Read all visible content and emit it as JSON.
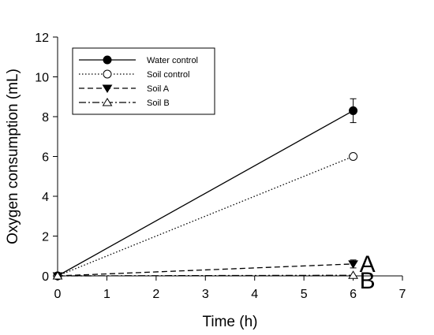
{
  "chart_data": {
    "type": "line",
    "title": "",
    "xlabel": "Time (h)",
    "ylabel": "Oxygen consumption (mL)",
    "xlim": [
      0,
      7
    ],
    "ylim": [
      0,
      12
    ],
    "xticks": [
      0,
      1,
      2,
      3,
      4,
      5,
      6,
      7
    ],
    "yticks": [
      0,
      2,
      4,
      6,
      8,
      10,
      12
    ],
    "grid": false,
    "legend_position": "top-left",
    "series": [
      {
        "name": "Water control",
        "x": [
          0,
          6
        ],
        "y": [
          0,
          8.3
        ],
        "yerr": [
          0,
          0.6
        ],
        "marker": "filled-circle",
        "line_style": "solid"
      },
      {
        "name": "Soil control",
        "x": [
          0,
          6
        ],
        "y": [
          0,
          6.0
        ],
        "marker": "open-circle",
        "line_style": "dotted"
      },
      {
        "name": "Soil A",
        "x": [
          0,
          6
        ],
        "y": [
          0,
          0.6
        ],
        "yerr": [
          0,
          0.2
        ],
        "marker": "filled-triangle-down",
        "line_style": "dashed"
      },
      {
        "name": "Soil B",
        "x": [
          0,
          6
        ],
        "y": [
          0,
          0.03
        ],
        "marker": "open-triangle-up",
        "line_style": "dash-dot"
      }
    ],
    "annotations": [
      {
        "text": "A",
        "x": 6,
        "y": 0.6
      },
      {
        "text": "B",
        "x": 6,
        "y": 0.0
      }
    ]
  }
}
